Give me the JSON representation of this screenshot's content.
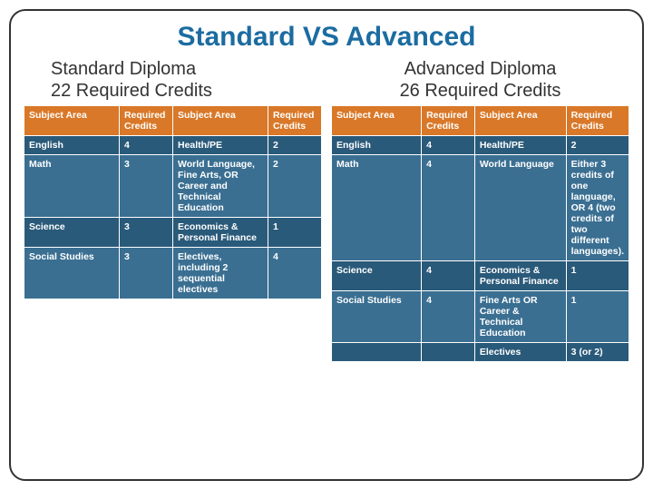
{
  "title": "Standard VS Advanced",
  "left": {
    "heading": "Standard Diploma\n22 Required Credits",
    "headers": [
      "Subject Area",
      "Required Credits",
      "Subject Area",
      "Required Credits"
    ],
    "rows": [
      [
        "English",
        "4",
        "Health/PE",
        "2"
      ],
      [
        "Math",
        "3",
        "World Language, Fine Arts, OR Career and Technical Education",
        "2"
      ],
      [
        "Science",
        "3",
        "Economics & Personal Finance",
        "1"
      ],
      [
        "Social Studies",
        "3",
        "Electives, including 2 sequential electives",
        "4"
      ]
    ]
  },
  "right": {
    "heading": "Advanced Diploma\n26 Required Credits",
    "headers": [
      "Subject Area",
      "Required Credits",
      "Subject Area",
      "Required Credits"
    ],
    "rows": [
      [
        "English",
        "4",
        "Health/PE",
        "2"
      ],
      [
        "Math",
        "4",
        "World Language",
        "Either 3 credits of one language, OR 4 (two credits of two different languages)."
      ],
      [
        "Science",
        "4",
        "Economics & Personal Finance",
        "1"
      ],
      [
        "Social Studies",
        "4",
        "Fine Arts OR Career & Technical Education",
        " 1"
      ],
      [
        "",
        "",
        "Electives",
        "3 (or 2)"
      ]
    ]
  },
  "colors": {
    "title": "#1c6ca1",
    "header_bg": "#d97828",
    "row_even": "#2a5a7a",
    "row_odd": "#3a6f92",
    "border": "#ffffff",
    "text": "#ffffff"
  }
}
